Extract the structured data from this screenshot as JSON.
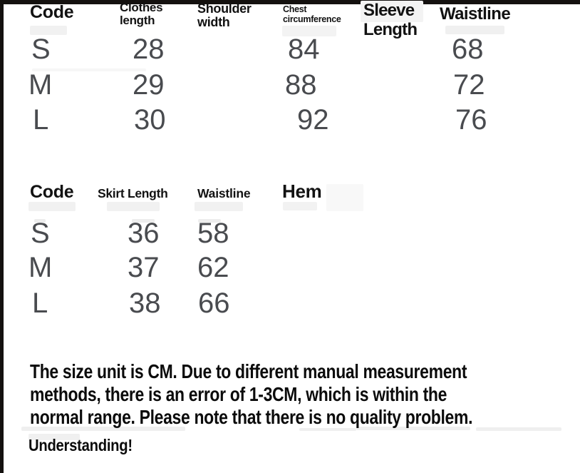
{
  "table1": {
    "headers": {
      "code": "Code",
      "clothes_length": "Clothes\nlength",
      "shoulder_width": "Shoulder\nwidth",
      "chest_circumference": "Chest\ncircumference",
      "sleeve_length": "Sleeve\nLength",
      "waistline": "Waistline"
    },
    "rows": [
      {
        "code": "S",
        "clothes_length": "28",
        "shoulder_width": "",
        "chest_circumference": "84",
        "sleeve_length": "",
        "waistline": "68"
      },
      {
        "code": "M",
        "clothes_length": "29",
        "shoulder_width": "",
        "chest_circumference": "88",
        "sleeve_length": "",
        "waistline": "72"
      },
      {
        "code": "L",
        "clothes_length": "30",
        "shoulder_width": "",
        "chest_circumference": "92",
        "sleeve_length": "",
        "waistline": "76"
      }
    ]
  },
  "table2": {
    "headers": {
      "code": "Code",
      "skirt_length": "Skirt Length",
      "waistline": "Waistline",
      "hem": "Hem"
    },
    "rows": [
      {
        "code": "S",
        "skirt_length": "36",
        "waistline": "58",
        "hem": ""
      },
      {
        "code": "M",
        "skirt_length": "37",
        "waistline": "62",
        "hem": ""
      },
      {
        "code": "L",
        "skirt_length": "38",
        "waistline": "66",
        "hem": ""
      }
    ]
  },
  "note": {
    "text": "The size unit is CM. Due to different manual measurement\nmethods, there is an error of 1-3CM, which is within the\nnormal range. Please note that there is no quality problem.",
    "emphasis": "Understanding!"
  },
  "colors": {
    "header_text": "#121212",
    "value_text": "#494b4f",
    "note_text": "#0b0b0b",
    "frame_border": "#14110f",
    "background": "#ffffff"
  }
}
